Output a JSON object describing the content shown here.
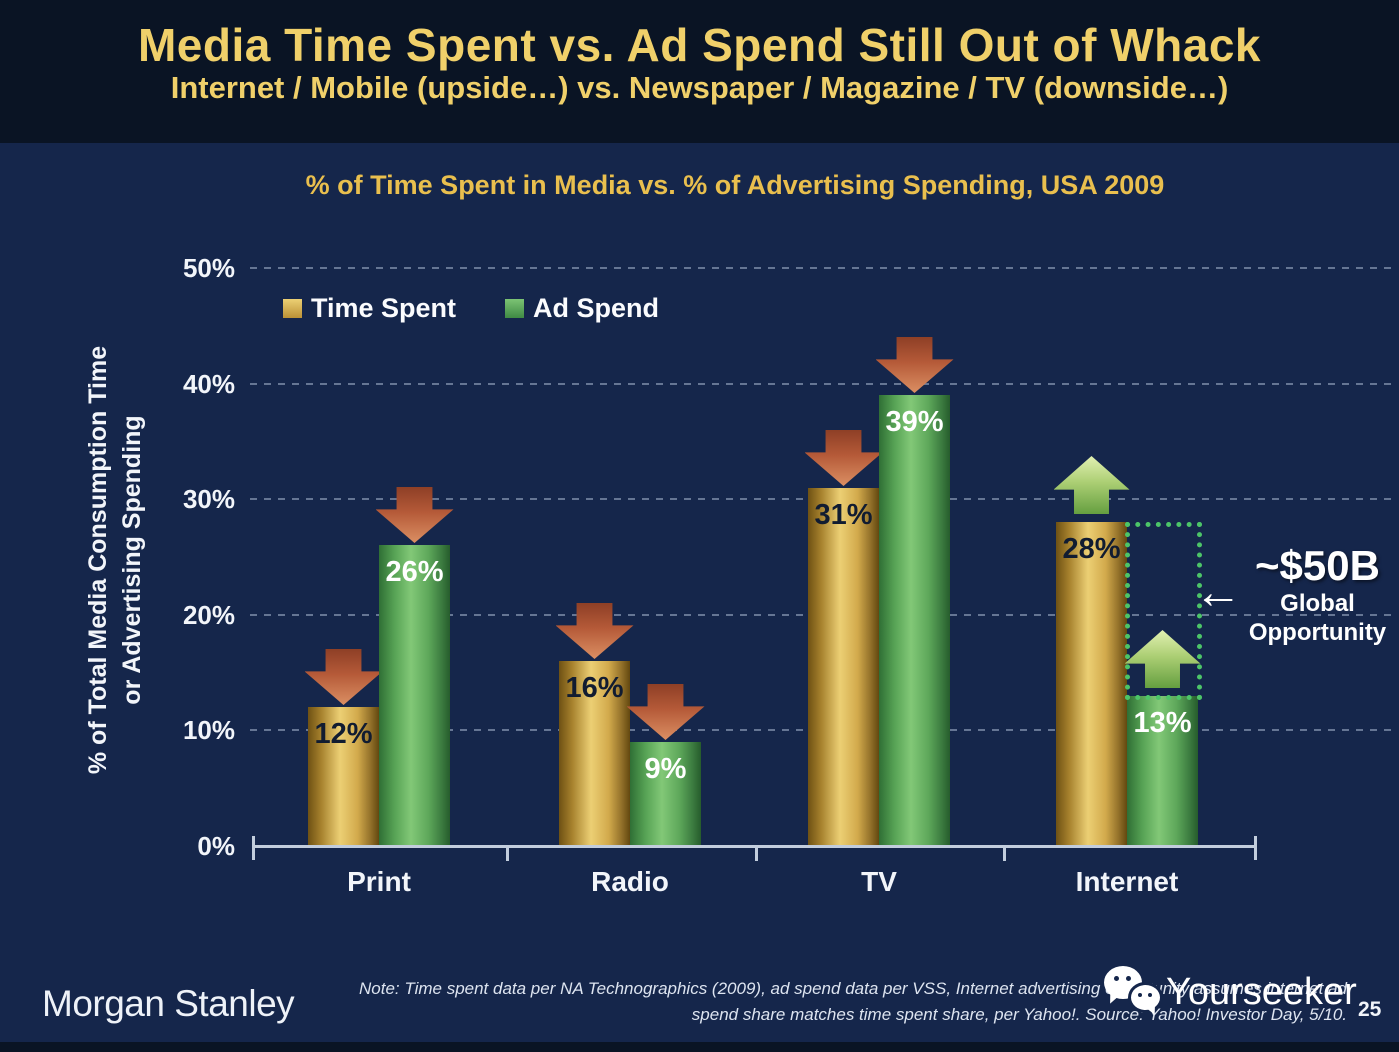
{
  "slide": {
    "title": "Media Time Spent vs. Ad Spend Still Out of Whack",
    "subtitle": "Internet / Mobile (upside…) vs. Newspaper / Magazine / TV (downside…)"
  },
  "chart_data": {
    "type": "bar",
    "title": "% of Time Spent in Media vs. % of Advertising Spending, USA 2009",
    "ylabel": [
      "% of Total Media Consumption Time",
      "or Advertising Spending"
    ],
    "categories": [
      "Print",
      "Radio",
      "TV",
      "Internet"
    ],
    "series": [
      {
        "name": "Time Spent",
        "color": "#d9b254",
        "values": [
          12,
          16,
          31,
          28
        ]
      },
      {
        "name": "Ad Spend",
        "color": "#55a457",
        "values": [
          26,
          9,
          39,
          13
        ]
      }
    ],
    "unit": "%",
    "y_ticks": [
      50,
      40,
      30,
      20,
      10,
      0
    ],
    "ylim": [
      0,
      50
    ],
    "grid": "dashed-horizontal",
    "legend_position": "top-left-inside",
    "trend_arrows": [
      [
        "down",
        "down"
      ],
      [
        "down",
        "down"
      ],
      [
        "down",
        "down"
      ],
      [
        "up",
        "up"
      ]
    ],
    "trend_arrow_colors": {
      "down": "#b55a38",
      "up": "#a8c868"
    }
  },
  "annotation": {
    "headline": "~$50B",
    "label_line1": "Global",
    "label_line2": "Opportunity",
    "arrow_glyph": "←",
    "gap_category": "Internet",
    "outline_color": "#4cc568"
  },
  "footer": {
    "logo": "Morgan Stanley",
    "note_line1": "Note: Time spent data per NA Technographics (2009), ad spend data per VSS, Internet advertising opportunity assumes internet ad",
    "note_line2": "spend share matches time spent share, per Yahoo!. Source: Yahoo! Investor Day, 5/10.",
    "watermark": "Yourseeker",
    "page": "25"
  }
}
